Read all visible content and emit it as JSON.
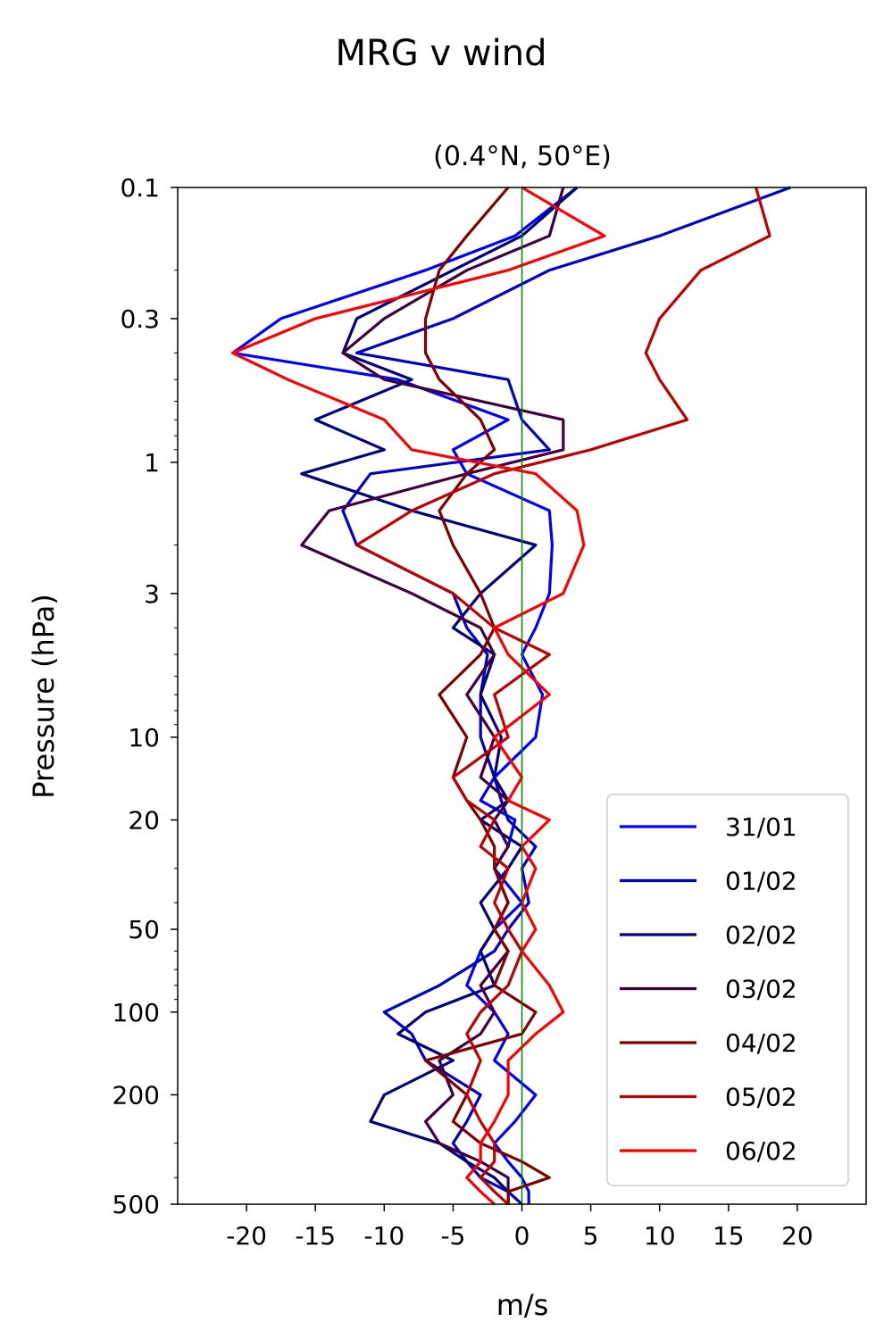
{
  "chart_data": {
    "type": "line",
    "suptitle": "MRG v wind",
    "title": "(0.4°N, 50°E)",
    "xlabel": "m/s",
    "ylabel": "Pressure (hPa)",
    "xlim": [
      -25,
      25
    ],
    "ylim": [
      500,
      0.1
    ],
    "y_scale": "log",
    "x_ticks": [
      -20,
      -15,
      -10,
      -5,
      0,
      5,
      10,
      15,
      20
    ],
    "x_tick_labels": [
      "-20",
      "-15",
      "-10",
      "-5",
      "0",
      "5",
      "10",
      "15",
      "20"
    ],
    "y_ticks": [
      0.1,
      0.3,
      1,
      3,
      10,
      20,
      50,
      100,
      200,
      500
    ],
    "y_tick_labels": [
      "0.1",
      "0.3",
      "1",
      "3",
      "10",
      "20",
      "50",
      "100",
      "200",
      "500"
    ],
    "zero_line_color": "#008000",
    "legend_position": "lower-right",
    "series": [
      {
        "name": "31/01",
        "color": "#0000ff",
        "pressure": [
          0.1,
          0.15,
          0.2,
          0.3,
          0.4,
          0.5,
          0.7,
          0.9,
          1.1,
          1.5,
          2,
          3,
          4,
          5,
          7,
          10,
          14,
          17,
          20,
          25,
          30,
          40,
          50,
          60,
          80,
          100,
          120,
          150,
          200,
          250,
          300,
          350,
          400,
          450,
          500
        ],
        "values": [
          4,
          -0.5,
          -7,
          -17.5,
          -21,
          -9,
          -1,
          -5,
          -4,
          2,
          2.2,
          2,
          1,
          0,
          1.5,
          1,
          -2,
          -3,
          -0.5,
          -1,
          -2,
          0,
          -2,
          -3,
          -4,
          -2,
          -1,
          -2,
          1,
          -0.5,
          -2,
          -1,
          0,
          0.5,
          0.5
        ]
      },
      {
        "name": "01/02",
        "color": "#0000c8",
        "pressure": [
          0.1,
          0.15,
          0.2,
          0.3,
          0.4,
          0.5,
          0.7,
          0.9,
          1.1,
          1.5,
          2,
          3,
          4,
          5,
          7,
          10,
          14,
          17,
          20,
          25,
          30,
          40,
          50,
          60,
          80,
          100,
          120,
          150,
          200,
          250,
          300,
          350,
          400,
          450,
          500
        ],
        "values": [
          19.5,
          10,
          2,
          -5,
          -12,
          -1,
          0,
          2,
          -11,
          -13,
          -12,
          -5,
          -4,
          -2.5,
          -3,
          -3,
          -2,
          -1.5,
          -1,
          1,
          0,
          0.5,
          -1,
          -2,
          -6,
          -10,
          -8,
          -7,
          -3,
          -4,
          -5,
          -4,
          -3,
          -1,
          0
        ]
      },
      {
        "name": "02/02",
        "color": "#000080",
        "pressure": [
          0.1,
          0.15,
          0.2,
          0.3,
          0.4,
          0.5,
          0.7,
          0.9,
          1.1,
          1.5,
          2,
          3,
          4,
          5,
          7,
          10,
          14,
          17,
          20,
          25,
          30,
          40,
          50,
          60,
          80,
          100,
          120,
          150,
          200,
          250,
          300,
          350,
          400,
          450,
          500
        ],
        "values": [
          4,
          0,
          -5,
          -12,
          -13,
          -8,
          -15,
          -10,
          -16,
          -8,
          1,
          -3,
          -5,
          -2,
          -3,
          -1.5,
          -2,
          -1,
          -3,
          0,
          -1,
          -3,
          -2,
          -3,
          -2,
          -7,
          -9,
          -5,
          -10,
          -11,
          -6,
          -4,
          -2,
          -1,
          -1
        ]
      },
      {
        "name": "03/02",
        "color": "#400040",
        "pressure": [
          0.1,
          0.15,
          0.2,
          0.3,
          0.4,
          0.5,
          0.7,
          0.9,
          1.1,
          1.5,
          2,
          3,
          4,
          5,
          7,
          10,
          14,
          17,
          20,
          25,
          30,
          40,
          50,
          60,
          80,
          100,
          120,
          150,
          200,
          250,
          300,
          350,
          400,
          450,
          500
        ],
        "values": [
          3,
          2,
          -4,
          -10,
          -13,
          -10,
          3,
          3,
          -4,
          -14,
          -16,
          -8,
          -3,
          -2,
          -4,
          -2,
          -3,
          -1,
          -2,
          -1,
          -2,
          -1,
          -2,
          -1,
          -3,
          -2,
          -3,
          -6,
          -5,
          -7,
          -6,
          -3,
          -1,
          -1,
          -1
        ]
      },
      {
        "name": "04/02",
        "color": "#800000",
        "pressure": [
          0.1,
          0.15,
          0.2,
          0.3,
          0.4,
          0.5,
          0.7,
          0.9,
          1.1,
          1.5,
          2,
          3,
          4,
          5,
          7,
          10,
          14,
          17,
          20,
          25,
          30,
          40,
          50,
          60,
          80,
          100,
          120,
          150,
          200,
          250,
          300,
          350,
          400,
          450,
          500
        ],
        "values": [
          -1,
          -4,
          -6,
          -7,
          -7,
          -6,
          -3,
          -2,
          -4,
          -6,
          -5,
          -3,
          -2,
          -3,
          -6,
          -4,
          -5,
          -4,
          -3,
          -2,
          -2,
          -1,
          -2,
          -1,
          -2,
          1,
          0,
          -7,
          -4,
          -5,
          -3,
          0,
          2,
          -1,
          -1
        ]
      },
      {
        "name": "05/02",
        "color": "#c00000",
        "pressure": [
          0.1,
          0.15,
          0.2,
          0.3,
          0.4,
          0.5,
          0.7,
          0.9,
          1.1,
          1.5,
          2,
          3,
          4,
          5,
          7,
          10,
          14,
          17,
          20,
          25,
          30,
          40,
          50,
          60,
          80,
          100,
          120,
          150,
          200,
          250,
          300,
          350,
          400,
          450,
          500
        ],
        "values": [
          17,
          18,
          13,
          10,
          9,
          10,
          12,
          5,
          -2,
          -8,
          -12,
          -5,
          -2,
          2,
          -2,
          -1,
          -5,
          -4,
          -2,
          -3,
          -1,
          -2,
          -1,
          0,
          -1,
          -3,
          -4,
          -3,
          -4,
          -3,
          -2,
          -2,
          -3,
          -2,
          -1
        ]
      },
      {
        "name": "06/02",
        "color": "#ff0000",
        "pressure": [
          0.1,
          0.15,
          0.2,
          0.3,
          0.4,
          0.5,
          0.7,
          0.9,
          1.1,
          1.5,
          2,
          3,
          4,
          5,
          7,
          10,
          14,
          17,
          20,
          25,
          30,
          40,
          50,
          60,
          80,
          100,
          120,
          150,
          200,
          250,
          300,
          350,
          400,
          450,
          500
        ],
        "values": [
          0,
          6,
          -1,
          -15,
          -21,
          -17,
          -10,
          -8,
          1,
          4,
          4.5,
          3,
          -2,
          -1,
          2,
          -2,
          0,
          -1,
          2,
          0,
          1,
          0,
          1,
          0,
          2,
          3,
          1,
          -1,
          -1,
          -2,
          -3,
          -3,
          -4,
          -3,
          -2
        ]
      }
    ]
  }
}
